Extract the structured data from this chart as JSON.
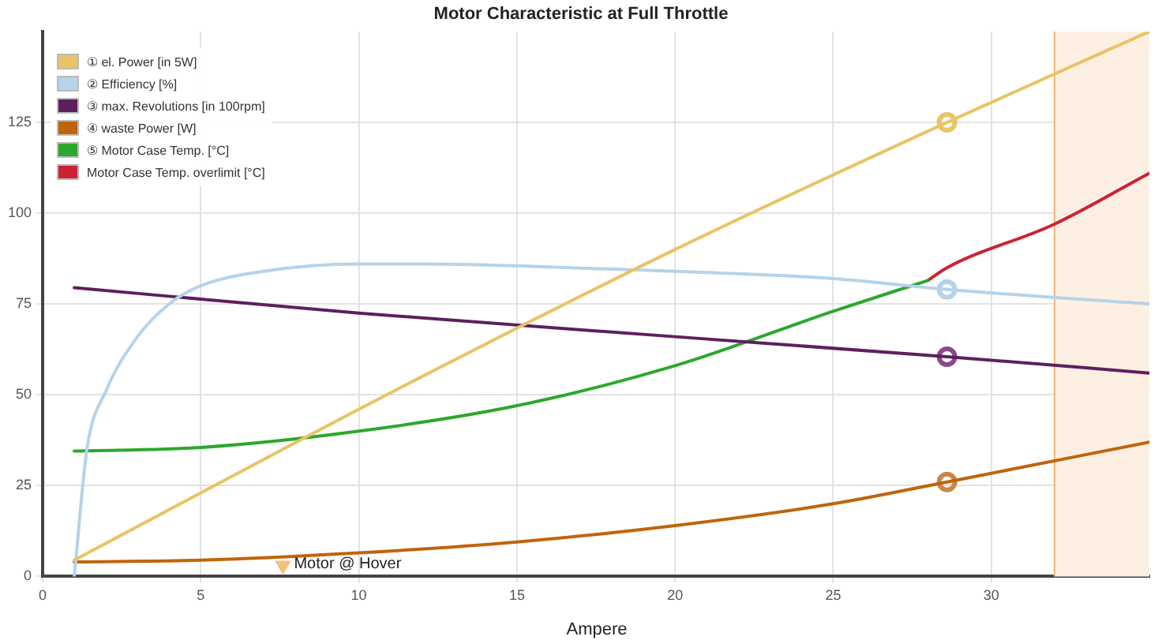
{
  "chart_data": {
    "type": "line",
    "title": "Motor Characteristic at Full Throttle",
    "xlabel": "Ampere",
    "xlim": [
      0,
      35
    ],
    "xticks": [
      0,
      5,
      10,
      15,
      20,
      25,
      30
    ],
    "ylim": [
      0,
      150
    ],
    "yticks": [
      0,
      25,
      50,
      75,
      100,
      125
    ],
    "grid": true,
    "legend": "top left",
    "marker": "none",
    "line_style": "solid",
    "series": [
      {
        "name": "① el. Power [in 5W]",
        "color": "#e8c466",
        "x": [
          1,
          5,
          11.1,
          20,
          28.6,
          35
        ],
        "values": [
          4.5,
          23,
          51,
          90,
          125,
          150
        ]
      },
      {
        "name": "② Efficiency [%]",
        "color": "#b5d3ea",
        "x": [
          1,
          1.4,
          2,
          3,
          4,
          5,
          7,
          10,
          12,
          15,
          20,
          25,
          28.6,
          35
        ],
        "values": [
          0,
          35,
          51,
          66,
          75,
          80,
          84,
          86,
          86,
          85.5,
          84,
          82,
          79,
          75
        ]
      },
      {
        "name": "③ max. Revolutions [in 100rpm]",
        "color": "#5e1f5e",
        "x": [
          1,
          10,
          20,
          28.6,
          35
        ],
        "values": [
          79.5,
          72.5,
          66,
          60.5,
          56
        ]
      },
      {
        "name": "④ waste Power [W]",
        "color": "#c0640a",
        "x": [
          1,
          5,
          10,
          15,
          20,
          25,
          28.6,
          35
        ],
        "values": [
          4,
          4.5,
          6.5,
          9.5,
          14,
          20,
          26,
          37
        ]
      },
      {
        "name": "⑤ Motor Case Temp. [°C]",
        "color": "#2ca82c",
        "x": [
          1,
          5,
          10,
          15,
          20,
          25,
          28
        ],
        "values": [
          34.5,
          35.5,
          40,
          47,
          58,
          73,
          81.5
        ]
      },
      {
        "name": "Motor Case Temp. overlimit [°C]",
        "color": "#cc2233",
        "x": [
          28,
          28.6,
          32,
          35
        ],
        "values": [
          81.5,
          85,
          97,
          111
        ]
      },
      {
        "type": "scatter",
        "marker": "triangle",
        "x": [
          7.6
        ],
        "values": [
          3
        ],
        "color": "#f8c080"
      },
      {
        "type": "scatter",
        "marker": "circle",
        "x": [
          28.6,
          28.6,
          28.6,
          28.6
        ],
        "values": [
          125,
          79,
          60.5,
          26
        ],
        "colors": [
          "#e8c466",
          "#b5d3ea",
          "#8a4a8a",
          "#c8874a"
        ]
      }
    ],
    "bands": [
      {
        "axis": "x",
        "from": 32,
        "to": 35,
        "color": "#fdf0e2"
      }
    ],
    "ref_lines": [
      {
        "axis": "x",
        "value": 32,
        "color": "#f5b070"
      }
    ],
    "annotations": [
      {
        "text": "Motor @ Hover",
        "x": 7.6,
        "y": 3
      }
    ]
  }
}
